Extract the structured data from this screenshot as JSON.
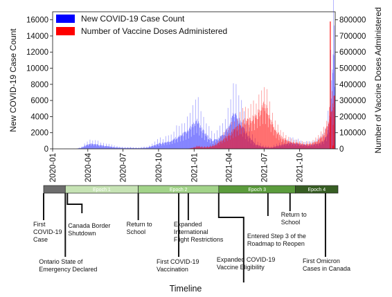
{
  "chart_data": {
    "type": "bar",
    "xlabel": "Timeline",
    "ylabel": "New COVID-19 Case Count",
    "ylabel_right": "Number of Vaccine Doses Administered",
    "ylim": [
      0,
      17000
    ],
    "ylim_right": [
      0,
      850000
    ],
    "yticks": [
      "0",
      "2000",
      "4000",
      "6000",
      "8000",
      "10000",
      "12000",
      "14000",
      "16000"
    ],
    "yticks_right": [
      "0",
      "100000",
      "200000",
      "300000",
      "400000",
      "500000",
      "600000",
      "700000",
      "800000"
    ],
    "xticks": [
      "2020-01",
      "2020-04",
      "2020-07",
      "2020-10",
      "2021-01",
      "2021-04",
      "2021-07",
      "2021-10"
    ],
    "legend_position": "top-left",
    "series": [
      {
        "name": "New COVID-19 Case Count",
        "color": "#0000ff",
        "points": [
          [
            "2020-01-25",
            0
          ],
          [
            "2020-03-01",
            10
          ],
          [
            "2020-03-15",
            150
          ],
          [
            "2020-03-25",
            450
          ],
          [
            "2020-04-05",
            700
          ],
          [
            "2020-04-15",
            650
          ],
          [
            "2020-04-25",
            550
          ],
          [
            "2020-05-10",
            400
          ],
          [
            "2020-05-25",
            320
          ],
          [
            "2020-06-10",
            200
          ],
          [
            "2020-07-01",
            120
          ],
          [
            "2020-07-20",
            130
          ],
          [
            "2020-08-10",
            100
          ],
          [
            "2020-09-01",
            170
          ],
          [
            "2020-09-15",
            380
          ],
          [
            "2020-10-01",
            650
          ],
          [
            "2020-10-15",
            800
          ],
          [
            "2020-11-01",
            1000
          ],
          [
            "2020-11-15",
            1400
          ],
          [
            "2020-12-01",
            1800
          ],
          [
            "2020-12-15",
            2200
          ],
          [
            "2021-01-01",
            3200
          ],
          [
            "2021-01-08",
            3600
          ],
          [
            "2021-01-15",
            2900
          ],
          [
            "2021-02-01",
            1700
          ],
          [
            "2021-02-15",
            1100
          ],
          [
            "2021-03-01",
            1200
          ],
          [
            "2021-03-15",
            1700
          ],
          [
            "2021-04-01",
            2800
          ],
          [
            "2021-04-10",
            4000
          ],
          [
            "2021-04-17",
            4400
          ],
          [
            "2021-04-25",
            3700
          ],
          [
            "2021-05-10",
            2400
          ],
          [
            "2021-05-25",
            1300
          ],
          [
            "2021-06-10",
            500
          ],
          [
            "2021-07-01",
            230
          ],
          [
            "2021-07-20",
            170
          ],
          [
            "2021-08-10",
            450
          ],
          [
            "2021-09-01",
            750
          ],
          [
            "2021-09-15",
            700
          ],
          [
            "2021-10-01",
            600
          ],
          [
            "2021-10-20",
            450
          ],
          [
            "2021-11-05",
            550
          ],
          [
            "2021-11-20",
            700
          ],
          [
            "2021-12-01",
            1000
          ],
          [
            "2021-12-10",
            1800
          ],
          [
            "2021-12-17",
            4000
          ],
          [
            "2021-12-24",
            9500
          ],
          [
            "2021-12-29",
            15000
          ],
          [
            "2021-12-31",
            13000
          ]
        ]
      },
      {
        "name": "Number of Vaccine Doses Administered",
        "color": "#ff0000",
        "points": [
          [
            "2020-12-14",
            0
          ],
          [
            "2020-12-25",
            5000
          ],
          [
            "2021-01-10",
            15000
          ],
          [
            "2021-01-25",
            10000
          ],
          [
            "2021-02-10",
            14000
          ],
          [
            "2021-03-01",
            30000
          ],
          [
            "2021-03-15",
            60000
          ],
          [
            "2021-04-01",
            90000
          ],
          [
            "2021-04-15",
            120000
          ],
          [
            "2021-05-01",
            150000
          ],
          [
            "2021-05-15",
            180000
          ],
          [
            "2021-05-25",
            180000
          ],
          [
            "2021-06-05",
            190000
          ],
          [
            "2021-06-15",
            220000
          ],
          [
            "2021-06-25",
            250000
          ],
          [
            "2021-07-01",
            270000
          ],
          [
            "2021-07-10",
            230000
          ],
          [
            "2021-07-20",
            160000
          ],
          [
            "2021-08-01",
            110000
          ],
          [
            "2021-08-15",
            70000
          ],
          [
            "2021-09-01",
            50000
          ],
          [
            "2021-09-15",
            40000
          ],
          [
            "2021-10-01",
            35000
          ],
          [
            "2021-10-15",
            28000
          ],
          [
            "2021-11-01",
            32000
          ],
          [
            "2021-11-15",
            50000
          ],
          [
            "2021-12-01",
            90000
          ],
          [
            "2021-12-10",
            130000
          ],
          [
            "2021-12-17",
            190000
          ],
          [
            "2021-12-22",
            270000
          ],
          [
            "2021-12-29",
            230000
          ]
        ],
        "spikes": [
          [
            "2021-12-18",
            790000
          ],
          [
            "2021-12-25",
            20000
          ],
          [
            "2021-12-28",
            330000
          ]
        ]
      }
    ],
    "epochs": [
      {
        "label": "",
        "start": "2020-01-25",
        "end": "2020-03-17",
        "color": "#6d6d6d"
      },
      {
        "label": "Epoch 1",
        "start": "2020-03-17",
        "end": "2020-09-08",
        "color": "#c6e3b4"
      },
      {
        "label": "Epoch 2",
        "start": "2020-09-08",
        "end": "2021-03-20",
        "color": "#a2d389"
      },
      {
        "label": "Epoch 3",
        "start": "2021-03-20",
        "end": "2021-09-20",
        "color": "#5b9c3c"
      },
      {
        "label": "Epoch 4",
        "start": "2021-09-20",
        "end": "2021-12-31",
        "color": "#375e23"
      }
    ],
    "annotations": [
      {
        "date": "2020-01-25",
        "lines": [
          "First",
          "COVID-19",
          "Case"
        ],
        "depth": "short",
        "text_side": "right"
      },
      {
        "date": "2020-03-17",
        "lines": [
          "Ontario State of",
          "Emergency Declared"
        ],
        "depth": "long",
        "text_side": "left"
      },
      {
        "date": "2020-03-17",
        "lines": [
          "Canada Border",
          "Shutdown"
        ],
        "depth": "bracket",
        "text_side": "right"
      },
      {
        "date": "2020-09-08",
        "lines": [
          "Return to",
          "School"
        ],
        "depth": "short",
        "text_side": "right"
      },
      {
        "date": "2020-12-14",
        "lines": [
          "First COVID-19",
          "Vaccination"
        ],
        "depth": "long",
        "text_side": "left"
      },
      {
        "date": "2021-01-06",
        "lines": [
          "Expanded",
          "International",
          "Flight Restrictions"
        ],
        "depth": "short",
        "text_side": "left"
      },
      {
        "date": "2021-03-20",
        "lines": [
          "Expanded COVID-19",
          "Vaccine Eligibility"
        ],
        "depth": "bracket-long",
        "text_side": "left"
      },
      {
        "date": "2021-07-16",
        "lines": [
          "Entered Step 3 of the",
          "Roadmap to Reopen"
        ],
        "depth": "medium",
        "text_side": "left"
      },
      {
        "date": "2021-09-07",
        "lines": [
          "Return to",
          "School"
        ],
        "depth": "upper",
        "text_side": "left"
      },
      {
        "date": "2021-12-01",
        "lines": [
          "First Omicron",
          "Cases in Canada"
        ],
        "depth": "long",
        "text_side": "left"
      }
    ]
  }
}
